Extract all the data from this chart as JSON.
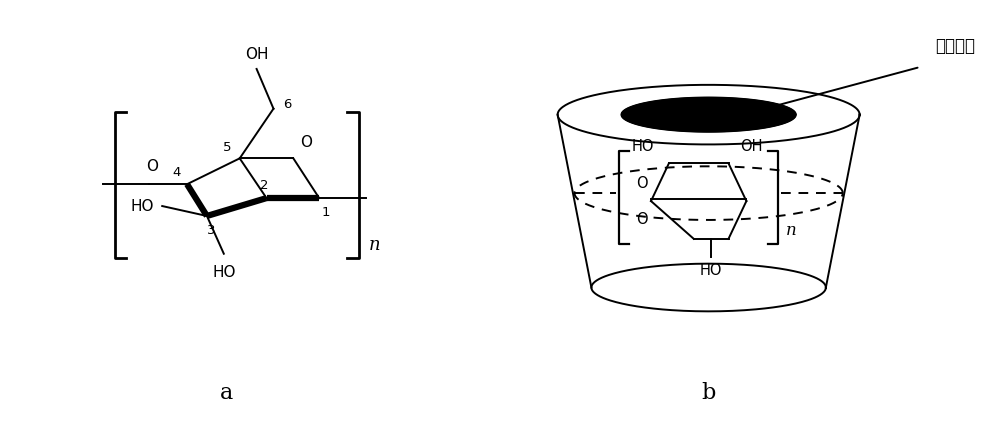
{
  "bg_color": "#ffffff",
  "line_color": "#000000",
  "label_a": "a",
  "label_b": "b",
  "annotation_cn": "疏水空腔",
  "fig_width": 10.0,
  "fig_height": 4.27
}
